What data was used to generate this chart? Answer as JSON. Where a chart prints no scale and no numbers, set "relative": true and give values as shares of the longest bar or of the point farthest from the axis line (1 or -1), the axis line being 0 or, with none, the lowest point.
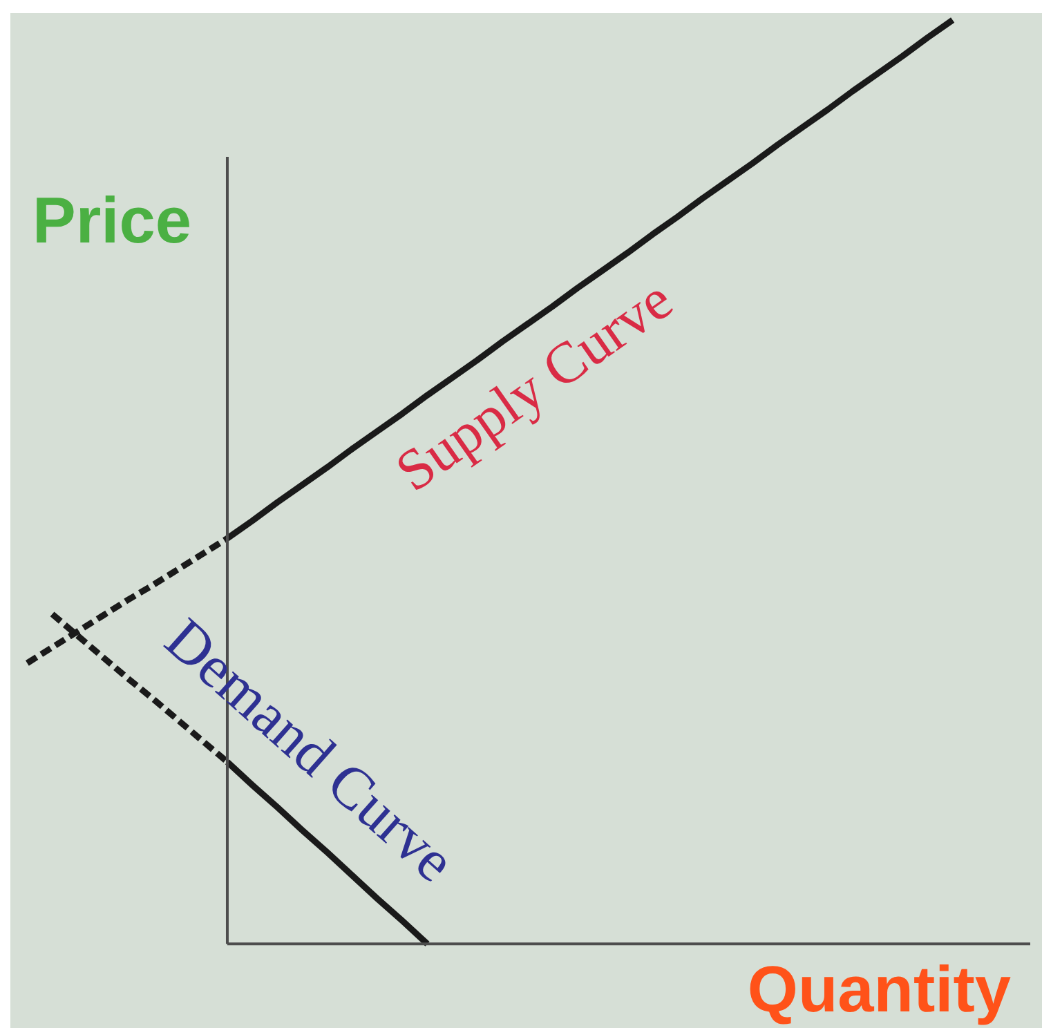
{
  "chart_data": {
    "type": "line",
    "relative": true,
    "xlabel": "Quantity",
    "ylabel": "Price",
    "categories": [
      null,
      null,
      null,
      null,
      null,
      null,
      null,
      null,
      null,
      null,
      null,
      null,
      null,
      null,
      null,
      null,
      null,
      null,
      null,
      null,
      null,
      null,
      null,
      null,
      null,
      null,
      null,
      null,
      null,
      null,
      null,
      null,
      null,
      null,
      null,
      null,
      null,
      null
    ],
    "series": [
      {
        "color": "#1a1a1a",
        "line_style": "dashed",
        "values": [
          0.304,
          0.321,
          0.338,
          0.355,
          0.372,
          0.388,
          0.405,
          0.422,
          0.439,
          null,
          null,
          null,
          null,
          null,
          null,
          null,
          null,
          null,
          null,
          null,
          null,
          null,
          null,
          null,
          null,
          null,
          null,
          null,
          null,
          null,
          null,
          null,
          null,
          null,
          null,
          null,
          null,
          null
        ]
      },
      {
        "name": "Supply Curve",
        "color": "#1a1a1a",
        "line_style": "solid",
        "values": [
          null,
          null,
          null,
          null,
          null,
          null,
          null,
          null,
          0.439,
          0.458,
          0.478,
          0.497,
          0.516,
          0.536,
          0.555,
          0.574,
          0.594,
          0.613,
          0.632,
          0.652,
          0.671,
          0.69,
          0.71,
          0.729,
          0.748,
          0.768,
          0.787,
          0.807,
          0.826,
          0.845,
          0.865,
          0.884,
          0.903,
          0.923,
          0.942,
          0.961,
          0.981,
          1.0
        ]
      },
      {
        "color": "#1a1a1a",
        "line_style": "dashed",
        "values": [
          null,
          0.357,
          0.334,
          0.311,
          0.288,
          0.266,
          0.243,
          0.22,
          0.197,
          null,
          null,
          null,
          null,
          null,
          null,
          null,
          null,
          null,
          null,
          null,
          null,
          null,
          null,
          null,
          null,
          null,
          null,
          null,
          null,
          null,
          null,
          null,
          null,
          null,
          null,
          null,
          null,
          null
        ]
      },
      {
        "name": "Demand Curve",
        "color": "#1a1a1a",
        "line_style": "solid",
        "values": [
          null,
          null,
          null,
          null,
          null,
          null,
          null,
          null,
          0.197,
          0.172,
          0.148,
          0.123,
          0.099,
          0.074,
          0.049,
          0.025,
          0,
          null,
          null,
          null,
          null,
          null,
          null,
          null,
          null,
          null,
          null,
          null,
          null,
          null,
          null,
          null,
          null,
          null,
          null,
          null,
          null,
          null
        ]
      }
    ]
  }
}
